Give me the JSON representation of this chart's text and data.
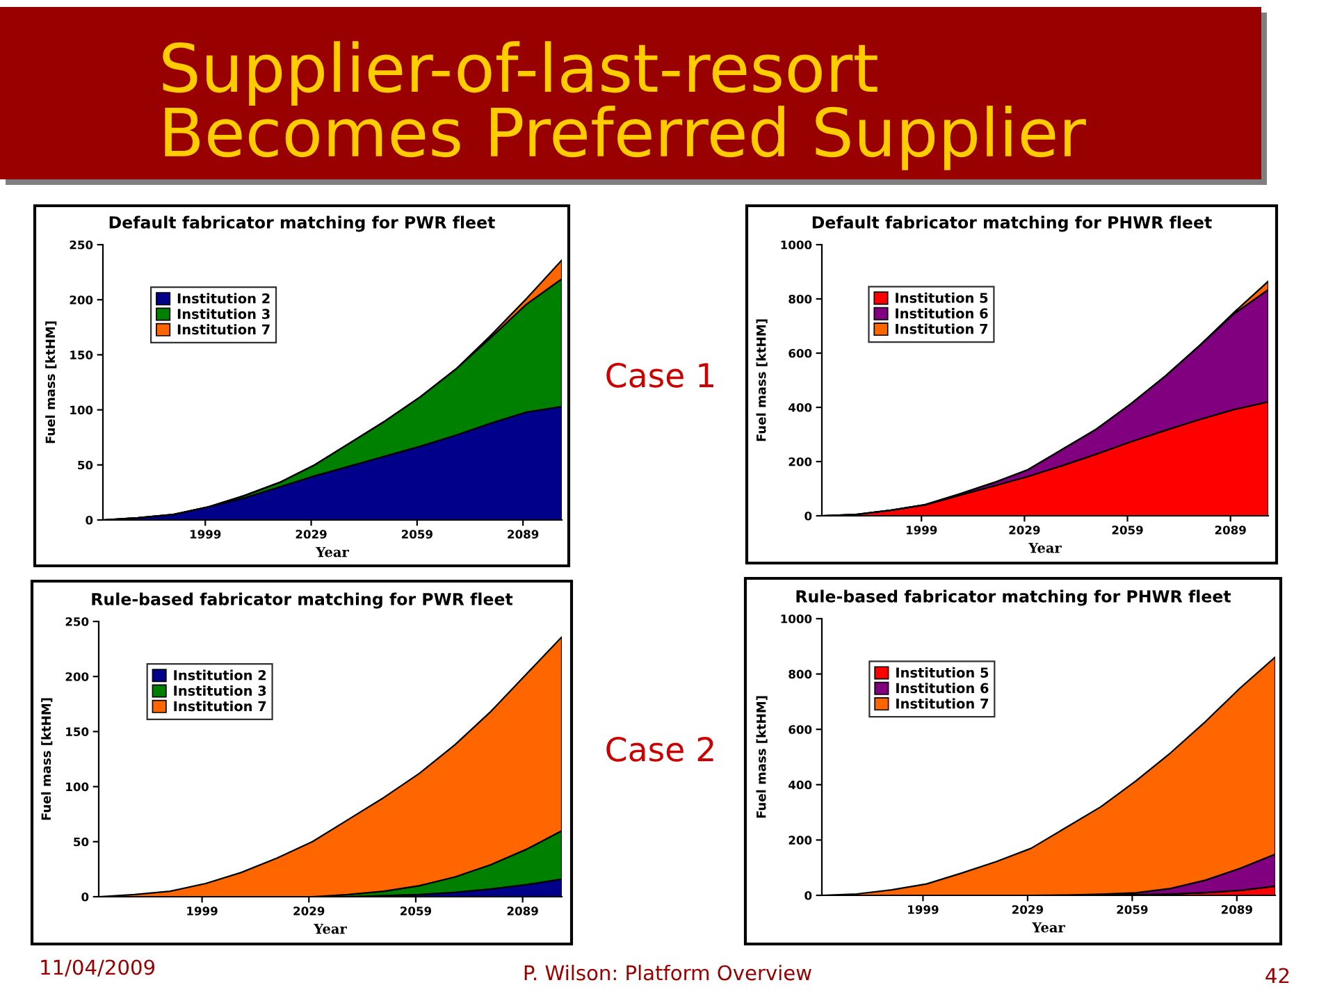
{
  "chart_data": [
    {
      "type": "other",
      "title": "Supplier-of-last-resort\nBecomes Preferred Supplier",
      "annotations": [
        "Case 1",
        "Case 2",
        "11/04/2009",
        "P. Wilson: Platform Overview",
        "42"
      ]
    },
    {
      "type": "area",
      "stacked": true,
      "title": "Default fabricator matching for PWR fleet",
      "xlabel": "Year",
      "ylabel": "Fuel mass [ktHM]",
      "x": [
        1970,
        1980,
        1990,
        2000,
        2010,
        2020,
        2030,
        2040,
        2050,
        2060,
        2070,
        2080,
        2090,
        2100
      ],
      "series": [
        {
          "name": "Institution 2",
          "color": "#00008b",
          "values": [
            0,
            2,
            5,
            12,
            20,
            30,
            40,
            49,
            58,
            67,
            77,
            88,
            98,
            103
          ]
        },
        {
          "name": "Institution 3",
          "color": "#008000",
          "values": [
            0,
            0,
            0,
            0,
            2,
            4,
            10,
            21,
            32,
            45,
            60,
            78,
            98,
            116
          ]
        },
        {
          "name": "Institution 7",
          "color": "#ff6600",
          "values": [
            0,
            0,
            0,
            0,
            0,
            0,
            0,
            0,
            0,
            0,
            0,
            2,
            5,
            17
          ]
        }
      ],
      "xlim": [
        1970,
        2100
      ],
      "xticks": [
        1999,
        2029,
        2059,
        2089
      ],
      "ylim": [
        0,
        250
      ],
      "yticks": [
        0,
        50,
        100,
        150,
        200,
        250
      ],
      "legend": "top left"
    },
    {
      "type": "area",
      "stacked": true,
      "title": "Default fabricator matching for PHWR fleet",
      "xlabel": "Year",
      "ylabel": "Fuel mass [ktHM]",
      "x": [
        1970,
        1980,
        1990,
        2000,
        2010,
        2020,
        2030,
        2040,
        2050,
        2060,
        2070,
        2080,
        2090,
        2100
      ],
      "series": [
        {
          "name": "Institution 5",
          "color": "#ff0000",
          "values": [
            0,
            5,
            20,
            40,
            75,
            110,
            145,
            185,
            228,
            273,
            315,
            355,
            392,
            420
          ]
        },
        {
          "name": "Institution 6",
          "color": "#800080",
          "values": [
            0,
            0,
            0,
            1,
            5,
            12,
            25,
            60,
            92,
            140,
            200,
            273,
            353,
            414
          ]
        },
        {
          "name": "Institution 7",
          "color": "#ff6600",
          "values": [
            0,
            0,
            0,
            0,
            0,
            0,
            0,
            0,
            0,
            0,
            0,
            0,
            5,
            31
          ]
        }
      ],
      "xlim": [
        1970,
        2100
      ],
      "xticks": [
        1999,
        2029,
        2059,
        2089
      ],
      "ylim": [
        0,
        1000
      ],
      "yticks": [
        0,
        200,
        400,
        600,
        800,
        1000
      ],
      "legend": "top left"
    },
    {
      "type": "area",
      "stacked": true,
      "title": "Rule-based fabricator matching for PWR fleet",
      "xlabel": "Year",
      "ylabel": "Fuel mass [ktHM]",
      "x": [
        1970,
        1980,
        1990,
        2000,
        2010,
        2020,
        2030,
        2040,
        2050,
        2060,
        2070,
        2080,
        2090,
        2100
      ],
      "series": [
        {
          "name": "Institution 2",
          "color": "#00008b",
          "values": [
            0,
            0,
            0,
            0,
            0,
            0,
            0,
            0,
            1,
            2,
            4,
            7,
            11,
            16
          ]
        },
        {
          "name": "Institution 3",
          "color": "#008000",
          "values": [
            0,
            0,
            0,
            0,
            0,
            0,
            0,
            2,
            4,
            8,
            14,
            22,
            32,
            44
          ]
        },
        {
          "name": "Institution 7",
          "color": "#ff6600",
          "values": [
            0,
            2,
            5,
            12,
            22,
            35,
            50,
            68,
            85,
            102,
            120,
            139,
            159,
            176
          ]
        }
      ],
      "xlim": [
        1970,
        2100
      ],
      "xticks": [
        1999,
        2029,
        2059,
        2089
      ],
      "ylim": [
        0,
        250
      ],
      "yticks": [
        0,
        50,
        100,
        150,
        200,
        250
      ],
      "legend": "top left"
    },
    {
      "type": "area",
      "stacked": true,
      "title": "Rule-based fabricator matching for PHWR fleet",
      "xlabel": "Year",
      "ylabel": "Fuel mass [ktHM]",
      "x": [
        1970,
        1980,
        1990,
        2000,
        2010,
        2020,
        2030,
        2040,
        2050,
        2060,
        2070,
        2080,
        2090,
        2100
      ],
      "series": [
        {
          "name": "Institution 5",
          "color": "#ff0000",
          "values": [
            0,
            0,
            0,
            0,
            0,
            0,
            0,
            0,
            1,
            2,
            5,
            10,
            18,
            33
          ]
        },
        {
          "name": "Institution 6",
          "color": "#800080",
          "values": [
            0,
            0,
            0,
            0,
            0,
            0,
            0,
            1,
            3,
            7,
            20,
            45,
            80,
            116
          ]
        },
        {
          "name": "Institution 7",
          "color": "#ff6600",
          "values": [
            0,
            5,
            20,
            41,
            80,
            122,
            170,
            244,
            316,
            404,
            490,
            573,
            652,
            712
          ]
        }
      ],
      "xlim": [
        1970,
        2100
      ],
      "xticks": [
        1999,
        2029,
        2059,
        2089
      ],
      "ylim": [
        0,
        1000
      ],
      "yticks": [
        0,
        200,
        400,
        600,
        800,
        1000
      ],
      "legend": "top left"
    }
  ]
}
